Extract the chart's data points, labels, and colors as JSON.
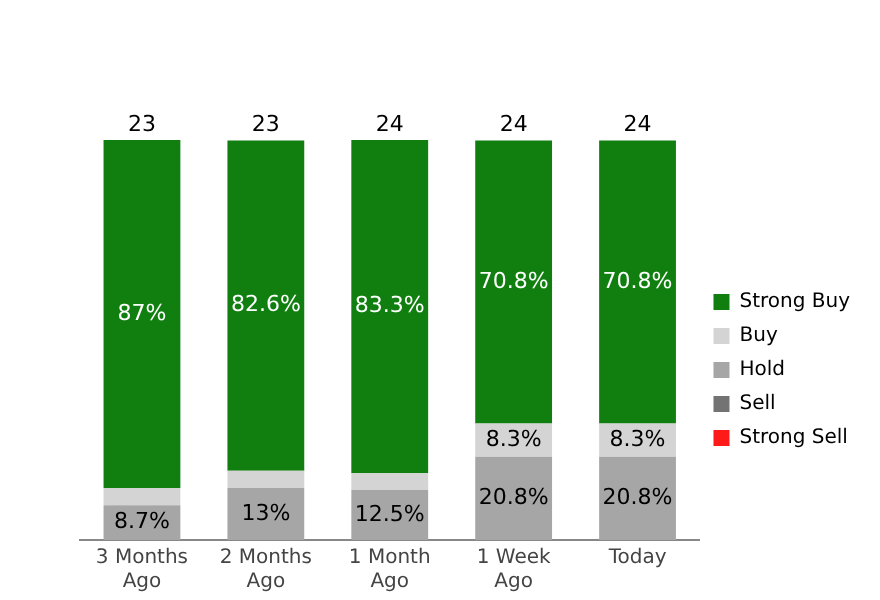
{
  "chart_data": {
    "type": "bar",
    "stacked": true,
    "categories": [
      "3 Months Ago",
      "2 Months Ago",
      "1 Month Ago",
      "1 Week Ago",
      "Today"
    ],
    "series": [
      {
        "name": "Strong Sell",
        "color": "#ff1a1a",
        "values": [
          null,
          null,
          null,
          null,
          null
        ]
      },
      {
        "name": "Sell",
        "color": "#737373",
        "values": [
          null,
          null,
          null,
          null,
          null
        ]
      },
      {
        "name": "Hold",
        "color": "#a6a6a6",
        "values": [
          8.7,
          13,
          12.5,
          20.8,
          20.8
        ],
        "value_labels": [
          "8.7%",
          "13%",
          "12.5%",
          "20.8%",
          "20.8%"
        ]
      },
      {
        "name": "Buy",
        "color": "#d4d4d4",
        "values": [
          4.3,
          4.3,
          4.2,
          8.3,
          8.3
        ],
        "value_labels": [
          null,
          null,
          null,
          "8.3%",
          "8.3%"
        ]
      },
      {
        "name": "Strong Buy",
        "color": "#107f10",
        "values": [
          87,
          82.6,
          83.3,
          70.8,
          70.8
        ],
        "value_labels": [
          "87%",
          "82.6%",
          "83.3%",
          "70.8%",
          "70.8%"
        ]
      }
    ],
    "annotations": [
      {
        "text": "23",
        "x": "3 Months Ago",
        "y": 100
      },
      {
        "text": "23",
        "x": "2 Months Ago",
        "y": 100
      },
      {
        "text": "24",
        "x": "1 Month Ago",
        "y": 100
      },
      {
        "text": "24",
        "x": "1 Week Ago",
        "y": 100
      },
      {
        "text": "24",
        "x": "Today",
        "y": 100
      }
    ],
    "tick_labels": "x",
    "grid": false,
    "legend": "right"
  }
}
